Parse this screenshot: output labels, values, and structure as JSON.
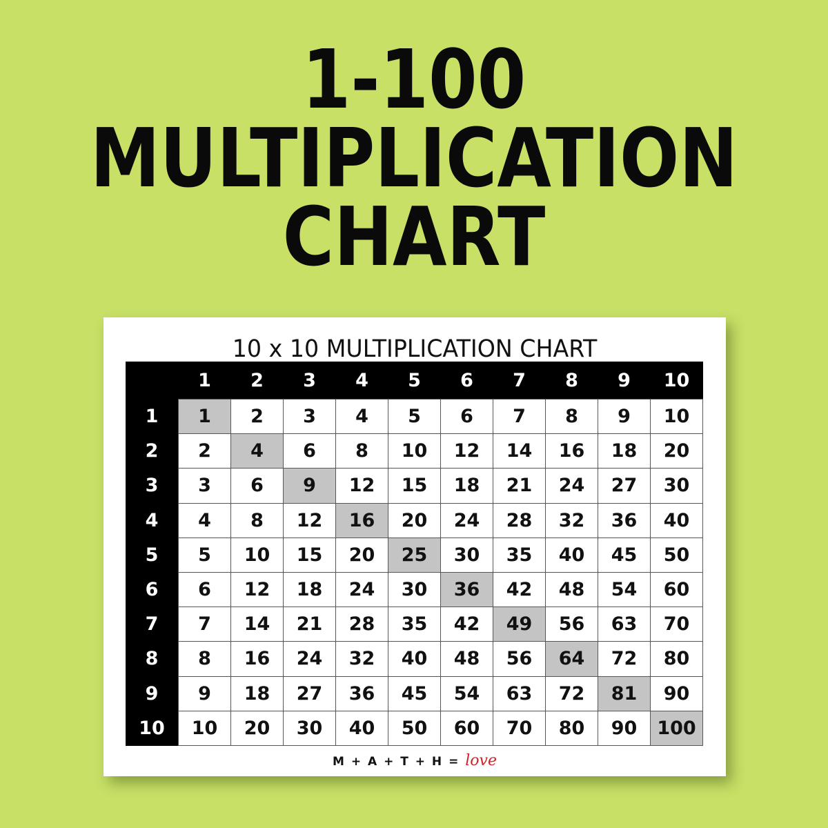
{
  "headline": [
    "1-100",
    "MULTIPLICATION",
    "CHART"
  ],
  "chart": {
    "title": "10 x 10 MULTIPLICATION CHART",
    "column_headers": [
      "1",
      "2",
      "3",
      "4",
      "5",
      "6",
      "7",
      "8",
      "9",
      "10"
    ],
    "row_headers": [
      "1",
      "2",
      "3",
      "4",
      "5",
      "6",
      "7",
      "8",
      "9",
      "10"
    ],
    "rows": [
      [
        1,
        2,
        3,
        4,
        5,
        6,
        7,
        8,
        9,
        10
      ],
      [
        2,
        4,
        6,
        8,
        10,
        12,
        14,
        16,
        18,
        20
      ],
      [
        3,
        6,
        9,
        12,
        15,
        18,
        21,
        24,
        27,
        30
      ],
      [
        4,
        8,
        12,
        16,
        20,
        24,
        28,
        32,
        36,
        40
      ],
      [
        5,
        10,
        15,
        20,
        25,
        30,
        35,
        40,
        45,
        50
      ],
      [
        6,
        12,
        18,
        24,
        30,
        36,
        42,
        48,
        54,
        60
      ],
      [
        7,
        14,
        21,
        28,
        35,
        42,
        49,
        56,
        63,
        70
      ],
      [
        8,
        16,
        24,
        32,
        40,
        48,
        56,
        64,
        72,
        80
      ],
      [
        9,
        18,
        27,
        36,
        45,
        54,
        63,
        72,
        81,
        90
      ],
      [
        10,
        20,
        30,
        40,
        50,
        60,
        70,
        80,
        90,
        100
      ]
    ],
    "diagonal_highlight_color": "#c4c4c4",
    "header_color": "#000000"
  },
  "footer": {
    "brand": "M + A + T + H =",
    "brand_script": "love"
  },
  "colors": {
    "background": "#c8e066",
    "love": "#d0222a"
  }
}
